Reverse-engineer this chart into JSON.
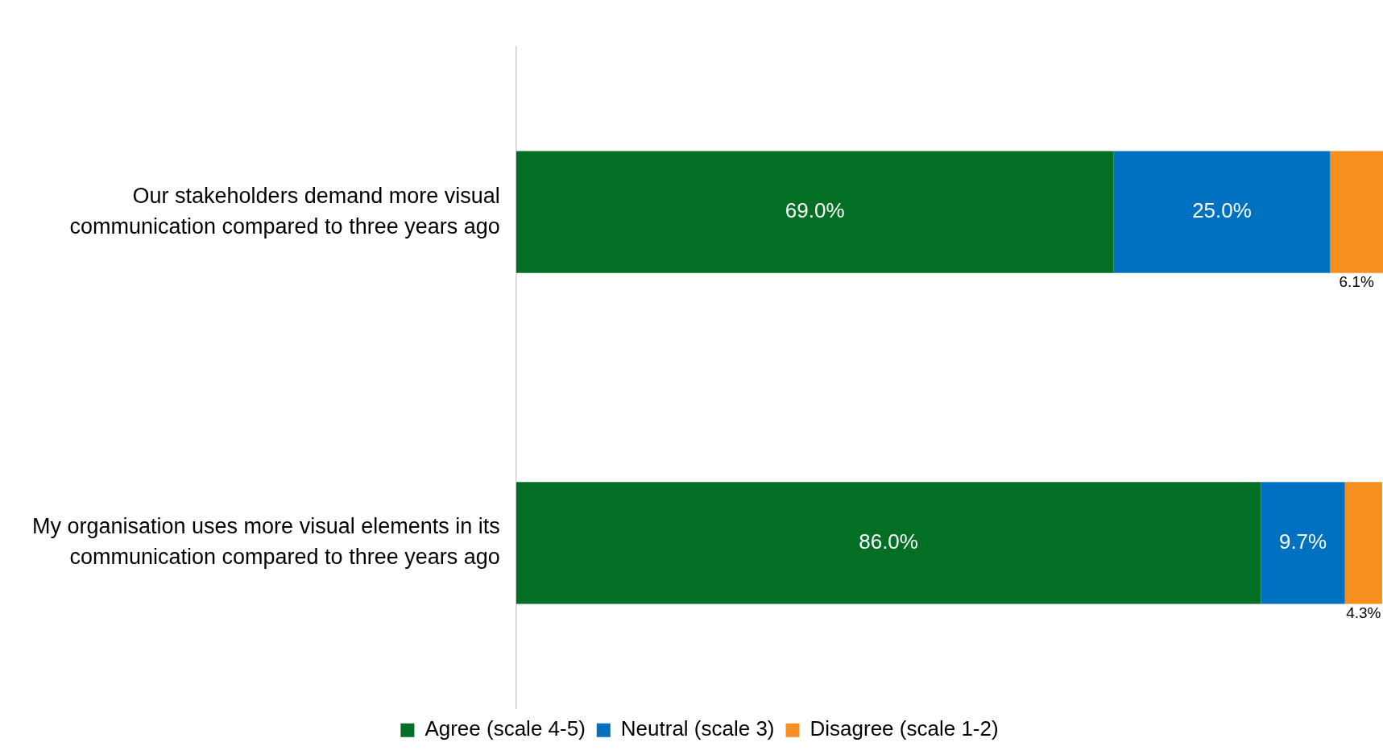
{
  "chart_data": {
    "type": "bar",
    "orientation": "horizontal",
    "stacked": true,
    "categories": [
      "Our stakeholders demand more visual communication compared to three years ago",
      "My organisation uses more visual elements in its communication compared to three years ago"
    ],
    "series": [
      {
        "name": "Agree (scale 4-5)",
        "color": "#036f24",
        "values": [
          69.0,
          86.0
        ],
        "value_labels": [
          "69.0%",
          "86.0%"
        ]
      },
      {
        "name": "Neutral (scale 3)",
        "color": "#0070c0",
        "values": [
          25.0,
          9.7
        ],
        "value_labels": [
          "25.0%",
          "9.7%"
        ]
      },
      {
        "name": "Disagree (scale 1-2)",
        "color": "#f58f1f",
        "values": [
          6.1,
          4.3
        ],
        "value_labels": [
          "6.1%",
          "4.3%"
        ]
      }
    ],
    "legend": "bottom"
  }
}
